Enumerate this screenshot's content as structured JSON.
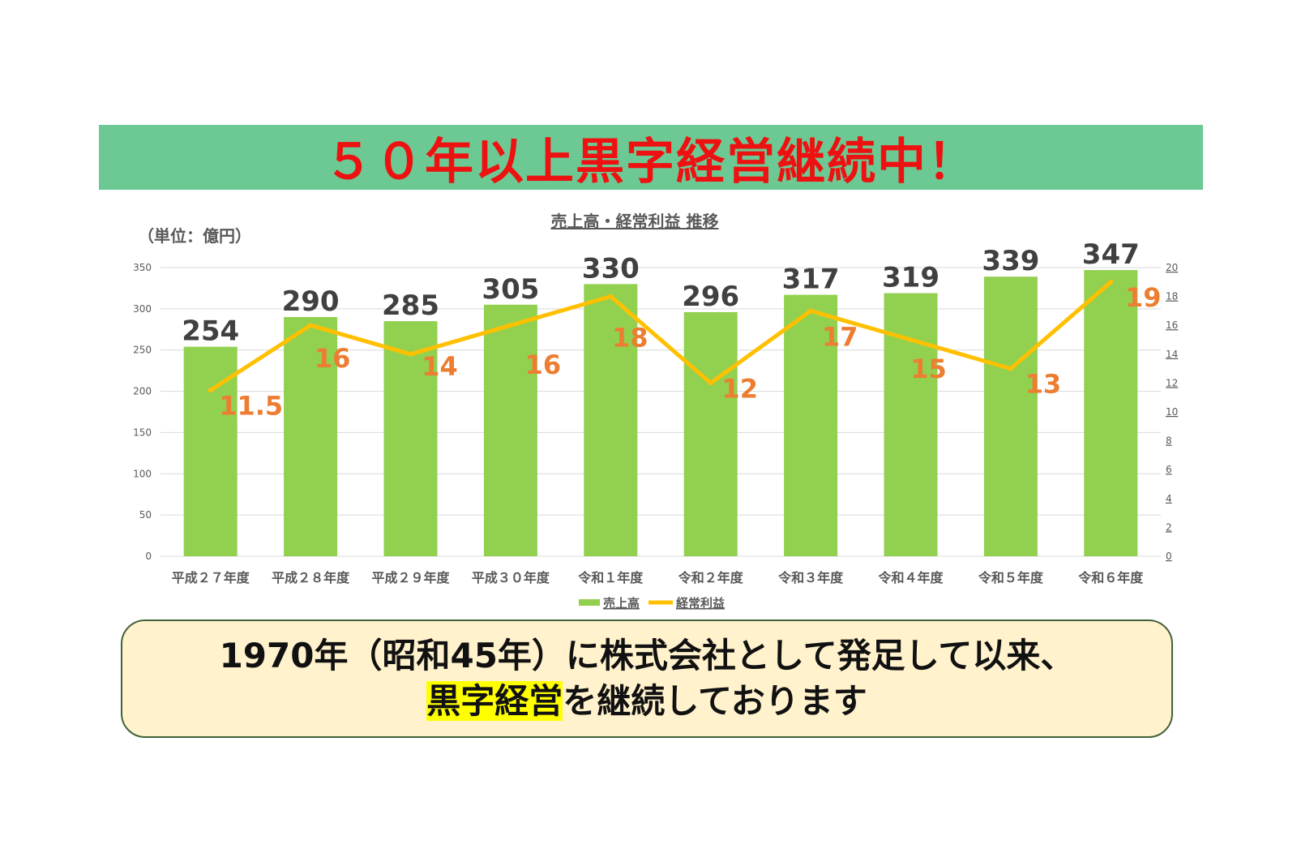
{
  "banner": {
    "text": "５０年以上黒字経営継続中！",
    "bg_color": "#6cc994",
    "text_color": "#ee1111"
  },
  "chart_data": {
    "type": "bar+line",
    "title": "売上高・経常利益 推移",
    "unit_label": "（単位：億円）",
    "categories": [
      "平成２７年度",
      "平成２８年度",
      "平成２９年度",
      "平成３０年度",
      "令和１年度",
      "令和２年度",
      "令和３年度",
      "令和４年度",
      "令和５年度",
      "令和６年度"
    ],
    "series": [
      {
        "name": "売上高",
        "type": "bar",
        "axis": "left",
        "color": "#92d050",
        "values": [
          254,
          290,
          285,
          305,
          330,
          296,
          317,
          319,
          339,
          347
        ]
      },
      {
        "name": "経常利益",
        "type": "line",
        "axis": "right",
        "color": "#ffc000",
        "label_color": "#ed7d31",
        "values": [
          11.5,
          16,
          14,
          16,
          18,
          12,
          17,
          15,
          13,
          19
        ]
      }
    ],
    "y_left": {
      "min": 0,
      "max": 350,
      "ticks": [
        0,
        50,
        100,
        150,
        200,
        250,
        300,
        350
      ]
    },
    "y_right": {
      "min": 0,
      "max": 20,
      "ticks": [
        0,
        2,
        4,
        6,
        8,
        10,
        12,
        14,
        16,
        18,
        20
      ]
    },
    "grid": true,
    "legend": "bottom"
  },
  "message": {
    "line1": "1970年（昭和45年）に株式会社として発足して以来、",
    "line2_highlight": "黒字経営",
    "line2_rest": "を継続しております",
    "highlight_color": "#ffff00",
    "bg_color": "#fff2cc"
  }
}
